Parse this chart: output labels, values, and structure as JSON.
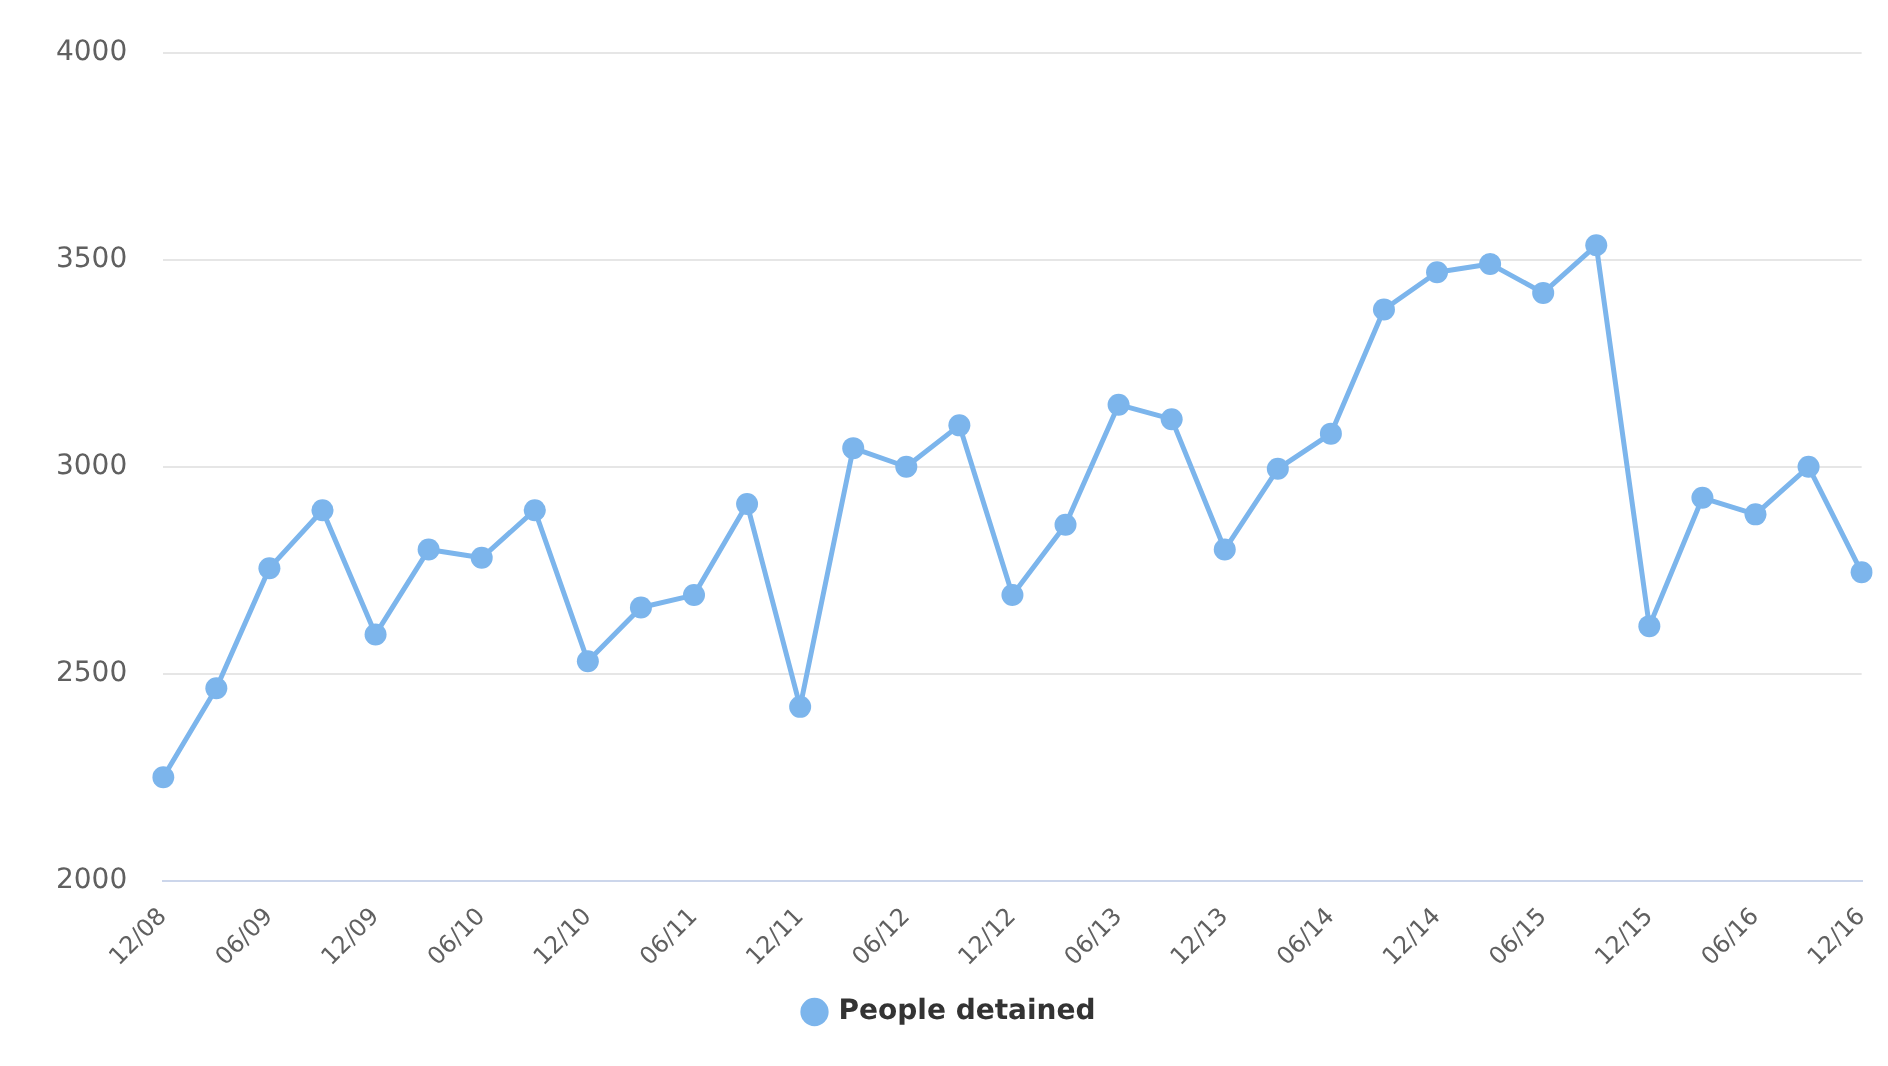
{
  "chart_data": {
    "type": "line",
    "categories": [
      "12/08",
      null,
      "06/09",
      null,
      "12/09",
      null,
      "06/10",
      null,
      "12/10",
      null,
      "06/11",
      null,
      "12/11",
      null,
      "06/12",
      null,
      "12/12",
      null,
      "06/13",
      null,
      "12/13",
      null,
      "06/14",
      null,
      "12/14",
      null,
      "06/15",
      null,
      "12/15",
      null,
      "06/16",
      null,
      "12/16"
    ],
    "series": [
      {
        "name": "People detained",
        "color": "#7cb5ec",
        "values": [
          2250,
          2465,
          2755,
          2895,
          2595,
          2800,
          2780,
          2895,
          2530,
          2660,
          2690,
          2910,
          2420,
          3045,
          3000,
          3100,
          2690,
          2860,
          3150,
          3115,
          2800,
          2995,
          3080,
          3380,
          3470,
          3490,
          3420,
          3535,
          2615,
          2925,
          2885,
          3000,
          2745
        ]
      }
    ],
    "ylim": [
      2000,
      4000
    ],
    "yticks": [
      2000,
      2500,
      3000,
      3500,
      4000
    ],
    "grid": "y",
    "legend": "bottom",
    "marker": "circle",
    "line_style": "solid"
  }
}
